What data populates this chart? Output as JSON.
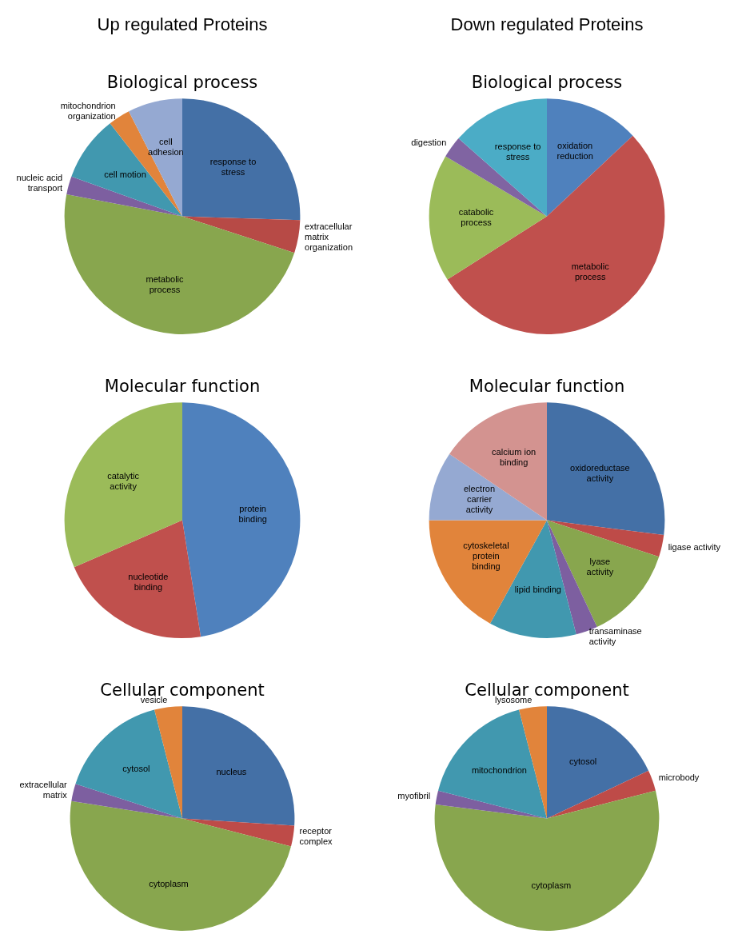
{
  "chart_data": [
    {
      "type": "pie",
      "subtitle": "Up regulated Proteins",
      "title": "Biological process",
      "legend": false,
      "categories": [
        "response to stress",
        "extracellular matrix organization",
        "metabolic process",
        "nucleic acid transport",
        "cell motion",
        "mitochondrion organization",
        "cell adhesion"
      ],
      "values": [
        25.5,
        4.5,
        48,
        2.5,
        9,
        3,
        7.5
      ],
      "colors": [
        "#4470a6",
        "#b74a46",
        "#88a64e",
        "#7d5fa0",
        "#4198af",
        "#e1843b",
        "#95a9d2"
      ]
    },
    {
      "type": "pie",
      "subtitle": "Down regulated Proteins",
      "title": "Biological process",
      "legend": false,
      "categories": [
        "oxidation reduction",
        "metabolic process",
        "catabolic process",
        "digestion",
        "response to stress"
      ],
      "values": [
        13,
        53,
        17.5,
        3,
        13.5
      ],
      "colors": [
        "#4f81bd",
        "#c0504d",
        "#9bbb59",
        "#8064a2",
        "#4bacc6"
      ]
    },
    {
      "type": "pie",
      "title": "Molecular function",
      "legend": false,
      "categories": [
        "protein binding",
        "nucleotide binding",
        "catalytic activity"
      ],
      "values": [
        47.5,
        21,
        31.5
      ],
      "colors": [
        "#4f81bd",
        "#c0504d",
        "#9bbb59"
      ]
    },
    {
      "type": "pie",
      "title": "Molecular function",
      "legend": false,
      "categories": [
        "oxidoreductase activity",
        "ligase activity",
        "lyase activity",
        "transaminase activity",
        "lipid binding",
        "cytoskeletal protein binding",
        "electron carrier activity",
        "calcium ion binding"
      ],
      "values": [
        27,
        3,
        13,
        3,
        12,
        17,
        9.5,
        15.5
      ],
      "colors": [
        "#4470a6",
        "#be4b48",
        "#88a64e",
        "#7d5fa0",
        "#4198af",
        "#e1843b",
        "#95a9d2",
        "#d39390"
      ]
    },
    {
      "type": "pie",
      "title": "Cellular component",
      "legend": false,
      "categories": [
        "nucleus",
        "receptor complex",
        "cytoplasm",
        "extracellular matrix",
        "cytosol",
        "vesicle"
      ],
      "values": [
        26,
        3,
        48.5,
        2.5,
        16,
        4
      ],
      "colors": [
        "#4470a6",
        "#be4b48",
        "#88a64e",
        "#7d5fa0",
        "#4198af",
        "#e1843b"
      ]
    },
    {
      "type": "pie",
      "title": "Cellular component",
      "legend": false,
      "categories": [
        "cytosol",
        "microbody",
        "cytoplasm",
        "myofibril",
        "mitochondrion",
        "lysosome"
      ],
      "values": [
        18,
        3,
        56,
        2,
        17,
        4
      ],
      "colors": [
        "#4470a6",
        "#be4b48",
        "#88a64e",
        "#7d5fa0",
        "#4198af",
        "#e1843b"
      ]
    }
  ]
}
